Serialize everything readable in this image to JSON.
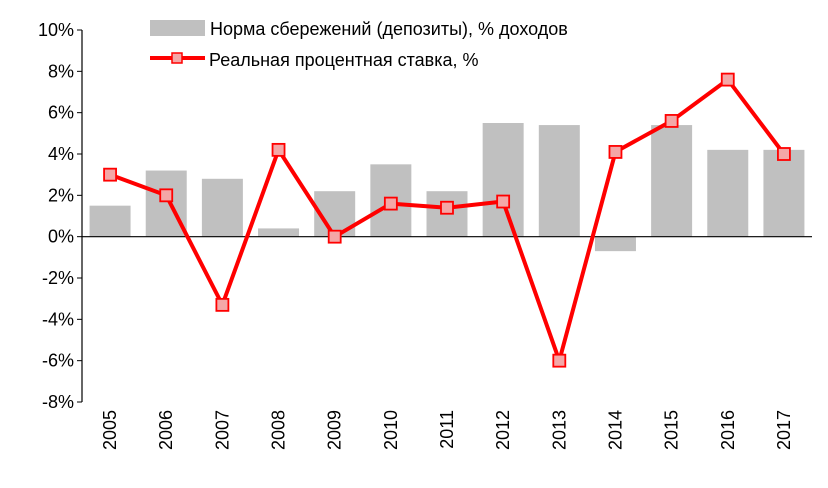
{
  "chart_data": {
    "type": "bar",
    "categories": [
      "2005",
      "2006",
      "2007",
      "2008",
      "2009",
      "2010",
      "2011",
      "2012",
      "2013",
      "2014",
      "2015",
      "2016",
      "2017"
    ],
    "series": [
      {
        "name": "Норма сбережений (депозиты), % доходов",
        "kind": "bar",
        "color": "#c0c0c0",
        "values": [
          1.5,
          3.2,
          2.8,
          0.4,
          2.2,
          3.5,
          2.2,
          5.5,
          5.4,
          -0.7,
          5.4,
          4.2,
          4.2
        ]
      },
      {
        "name": "Реальная процентная ставка, %",
        "kind": "line",
        "color": "#ff0000",
        "marker_fill": "#f4a7a7",
        "values": [
          3.0,
          2.0,
          -3.3,
          4.2,
          0.0,
          1.6,
          1.4,
          1.7,
          -6.0,
          4.1,
          5.6,
          7.6,
          4.0
        ]
      }
    ],
    "yticks": [
      "10%",
      "8%",
      "6%",
      "4%",
      "2%",
      "0%",
      "-2%",
      "-4%",
      "-6%",
      "-8%"
    ],
    "ylim": [
      -8,
      10
    ],
    "legend_position": "top",
    "grid": false
  }
}
